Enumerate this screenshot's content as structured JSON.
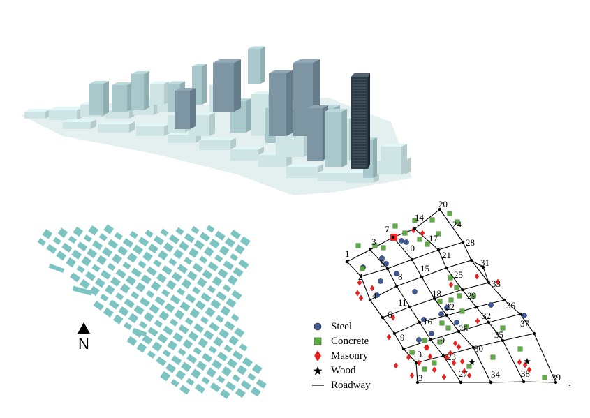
{
  "figure": {
    "north_label": "N",
    "legend": [
      {
        "key": "steel",
        "label": "Steel",
        "symbol": "circle",
        "color": "#3f5896"
      },
      {
        "key": "concrete",
        "label": "Concrete",
        "symbol": "square",
        "color": "#5fac45"
      },
      {
        "key": "masonry",
        "label": "Masonry",
        "symbol": "diamond",
        "color": "#e8201e"
      },
      {
        "key": "wood",
        "label": "Wood",
        "symbol": "star",
        "color": "#000000"
      },
      {
        "key": "roadway",
        "label": "Roadway",
        "symbol": "line",
        "color": "#000000"
      }
    ],
    "colors": {
      "building_light": "#cfe4e4",
      "building_mid": "#a8c8cc",
      "building_dark": "#7e95a3",
      "footprint": "#7cc4c2",
      "highlight_node": "#ff2020",
      "tower": "#2c3a46"
    },
    "network_nodes": [
      "1",
      "2",
      "3",
      "3",
      "4",
      "5",
      "6",
      "7",
      "8",
      "9",
      "10",
      "11",
      "13",
      "14",
      "15",
      "16",
      "17",
      "18",
      "19",
      "20",
      "21",
      "22",
      "23",
      "24",
      "25",
      "26",
      "27",
      "28",
      "29",
      "30",
      "31",
      "32",
      "33",
      "34",
      "35",
      "36",
      "37",
      "38",
      "39"
    ],
    "highlighted_node": "7"
  }
}
